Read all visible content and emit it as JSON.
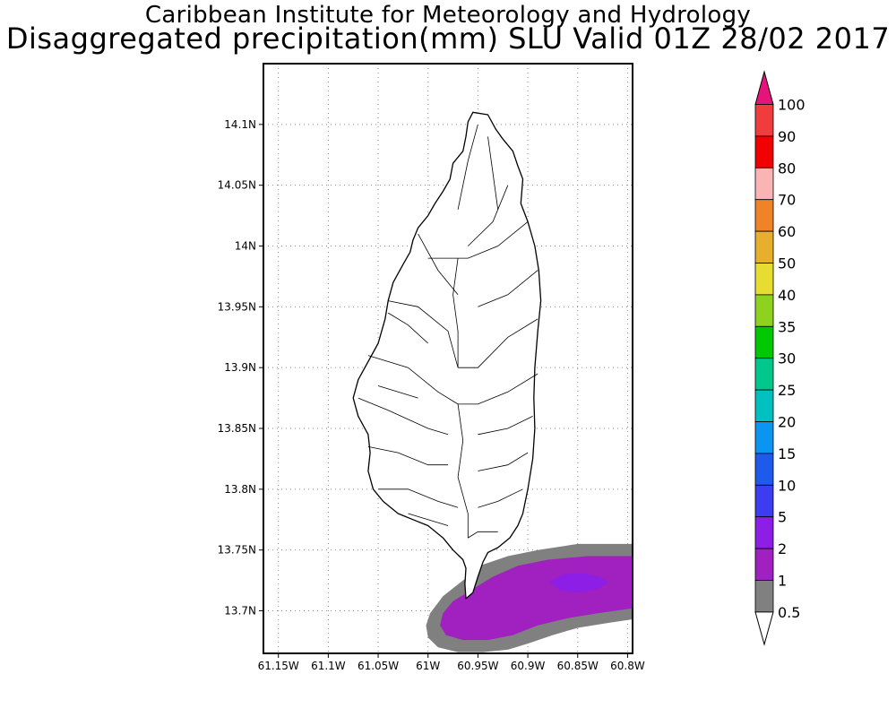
{
  "title": {
    "line1": "Caribbean Institute for Meteorology and Hydrology",
    "line2": "Disaggregated precipitation(mm) SLU Valid 01Z 28/02 2017"
  },
  "map": {
    "lon_range": [
      -61.165,
      -60.795
    ],
    "lat_range": [
      13.665,
      14.15
    ],
    "lon_ticks": [
      {
        "value": -61.15,
        "label": "61.15W"
      },
      {
        "value": -61.1,
        "label": "61.1W"
      },
      {
        "value": -61.05,
        "label": "61.05W"
      },
      {
        "value": -61.0,
        "label": "61W"
      },
      {
        "value": -60.95,
        "label": "60.95W"
      },
      {
        "value": -60.9,
        "label": "60.9W"
      },
      {
        "value": -60.85,
        "label": "60.85W"
      },
      {
        "value": -60.8,
        "label": "60.8W"
      }
    ],
    "lat_ticks": [
      {
        "value": 13.7,
        "label": "13.7N"
      },
      {
        "value": 13.75,
        "label": "13.75N"
      },
      {
        "value": 13.8,
        "label": "13.8N"
      },
      {
        "value": 13.85,
        "label": "13.85N"
      },
      {
        "value": 13.9,
        "label": "13.9N"
      },
      {
        "value": 13.95,
        "label": "13.95N"
      },
      {
        "value": 14.0,
        "label": "14N"
      },
      {
        "value": 14.05,
        "label": "14.05N"
      },
      {
        "value": 14.1,
        "label": "14.1N"
      }
    ],
    "grid": "dotted",
    "island_outline": [
      [
        -60.955,
        14.11
      ],
      [
        -60.94,
        14.108
      ],
      [
        -60.932,
        14.096
      ],
      [
        -60.925,
        14.088
      ],
      [
        -60.915,
        14.078
      ],
      [
        -60.91,
        14.066
      ],
      [
        -60.905,
        14.055
      ],
      [
        -60.907,
        14.035
      ],
      [
        -60.9,
        14.02
      ],
      [
        -60.893,
        14.0
      ],
      [
        -60.889,
        13.98
      ],
      [
        -60.887,
        13.955
      ],
      [
        -60.89,
        13.93
      ],
      [
        -60.893,
        13.9
      ],
      [
        -60.894,
        13.875
      ],
      [
        -60.893,
        13.85
      ],
      [
        -60.895,
        13.825
      ],
      [
        -60.9,
        13.8
      ],
      [
        -60.905,
        13.78
      ],
      [
        -60.91,
        13.77
      ],
      [
        -60.918,
        13.76
      ],
      [
        -60.93,
        13.752
      ],
      [
        -60.94,
        13.748
      ],
      [
        -60.945,
        13.74
      ],
      [
        -60.95,
        13.728
      ],
      [
        -60.955,
        13.715
      ],
      [
        -60.962,
        13.71
      ],
      [
        -60.963,
        13.722
      ],
      [
        -60.962,
        13.735
      ],
      [
        -60.965,
        13.742
      ],
      [
        -60.975,
        13.75
      ],
      [
        -60.985,
        13.76
      ],
      [
        -61.0,
        13.77
      ],
      [
        -61.015,
        13.775
      ],
      [
        -61.03,
        13.78
      ],
      [
        -61.045,
        13.79
      ],
      [
        -61.055,
        13.8
      ],
      [
        -61.06,
        13.815
      ],
      [
        -61.058,
        13.83
      ],
      [
        -61.06,
        13.845
      ],
      [
        -61.07,
        13.86
      ],
      [
        -61.075,
        13.875
      ],
      [
        -61.07,
        13.89
      ],
      [
        -61.06,
        13.905
      ],
      [
        -61.05,
        13.92
      ],
      [
        -61.043,
        13.94
      ],
      [
        -61.04,
        13.955
      ],
      [
        -61.035,
        13.97
      ],
      [
        -61.025,
        13.985
      ],
      [
        -61.018,
        13.995
      ],
      [
        -61.015,
        14.005
      ],
      [
        -61.01,
        14.015
      ],
      [
        -61.0,
        14.025
      ],
      [
        -60.993,
        14.035
      ],
      [
        -60.985,
        14.045
      ],
      [
        -60.978,
        14.055
      ],
      [
        -60.975,
        14.068
      ],
      [
        -60.965,
        14.078
      ],
      [
        -60.962,
        14.09
      ],
      [
        -60.96,
        14.102
      ]
    ],
    "watersheds": [
      [
        [
          -60.95,
          14.1
        ],
        [
          -60.96,
          14.07
        ],
        [
          -60.97,
          14.03
        ]
      ],
      [
        [
          -60.94,
          14.09
        ],
        [
          -60.935,
          14.06
        ],
        [
          -60.93,
          14.03
        ]
      ],
      [
        [
          -60.92,
          14.05
        ],
        [
          -60.935,
          14.02
        ],
        [
          -60.96,
          14.0
        ]
      ],
      [
        [
          -60.9,
          14.02
        ],
        [
          -60.93,
          14.0
        ],
        [
          -60.96,
          13.99
        ],
        [
          -61.0,
          13.99
        ]
      ],
      [
        [
          -61.01,
          14.01
        ],
        [
          -60.99,
          13.98
        ],
        [
          -60.97,
          13.96
        ]
      ],
      [
        [
          -60.89,
          13.98
        ],
        [
          -60.92,
          13.96
        ],
        [
          -60.95,
          13.95
        ]
      ],
      [
        [
          -61.04,
          13.955
        ],
        [
          -61.01,
          13.95
        ],
        [
          -60.98,
          13.93
        ],
        [
          -60.97,
          13.9
        ]
      ],
      [
        [
          -60.89,
          13.94
        ],
        [
          -60.92,
          13.925
        ],
        [
          -60.95,
          13.9
        ],
        [
          -60.97,
          13.9
        ]
      ],
      [
        [
          -61.06,
          13.91
        ],
        [
          -61.02,
          13.9
        ],
        [
          -60.99,
          13.88
        ],
        [
          -60.97,
          13.87
        ]
      ],
      [
        [
          -60.89,
          13.895
        ],
        [
          -60.92,
          13.88
        ],
        [
          -60.95,
          13.87
        ],
        [
          -60.97,
          13.87
        ]
      ],
      [
        [
          -61.07,
          13.875
        ],
        [
          -61.04,
          13.865
        ],
        [
          -61.0,
          13.85
        ],
        [
          -60.98,
          13.845
        ]
      ],
      [
        [
          -60.895,
          13.86
        ],
        [
          -60.92,
          13.85
        ],
        [
          -60.95,
          13.845
        ]
      ],
      [
        [
          -61.06,
          13.835
        ],
        [
          -61.03,
          13.83
        ],
        [
          -61.0,
          13.82
        ],
        [
          -60.98,
          13.82
        ]
      ],
      [
        [
          -60.9,
          13.83
        ],
        [
          -60.92,
          13.82
        ],
        [
          -60.95,
          13.815
        ]
      ],
      [
        [
          -61.05,
          13.8
        ],
        [
          -61.02,
          13.8
        ],
        [
          -60.99,
          13.79
        ],
        [
          -60.97,
          13.785
        ]
      ],
      [
        [
          -60.905,
          13.8
        ],
        [
          -60.93,
          13.79
        ],
        [
          -60.95,
          13.785
        ]
      ],
      [
        [
          -61.02,
          13.78
        ],
        [
          -61.0,
          13.775
        ],
        [
          -60.98,
          13.77
        ]
      ],
      [
        [
          -60.93,
          13.765
        ],
        [
          -60.95,
          13.765
        ],
        [
          -60.96,
          13.76
        ]
      ],
      [
        [
          -60.97,
          13.87
        ],
        [
          -60.965,
          13.84
        ],
        [
          -60.97,
          13.81
        ],
        [
          -60.96,
          13.78
        ],
        [
          -60.96,
          13.76
        ]
      ],
      [
        [
          -60.97,
          13.99
        ],
        [
          -60.975,
          13.96
        ],
        [
          -60.97,
          13.93
        ],
        [
          -60.97,
          13.9
        ]
      ],
      [
        [
          -61.04,
          13.945
        ],
        [
          -61.02,
          13.935
        ],
        [
          -61.0,
          13.92
        ]
      ],
      [
        [
          -61.05,
          13.885
        ],
        [
          -61.03,
          13.88
        ],
        [
          -61.01,
          13.875
        ]
      ]
    ],
    "precip_areas": [
      {
        "class": "0.5-1",
        "color": "#808080",
        "polygon": [
          [
            -60.795,
            13.755
          ],
          [
            -60.85,
            13.755
          ],
          [
            -60.89,
            13.75
          ],
          [
            -60.92,
            13.745
          ],
          [
            -60.945,
            13.738
          ],
          [
            -60.965,
            13.725
          ],
          [
            -60.985,
            13.712
          ],
          [
            -60.998,
            13.698
          ],
          [
            -61.002,
            13.688
          ],
          [
            -61.0,
            13.678
          ],
          [
            -60.99,
            13.67
          ],
          [
            -60.97,
            13.666
          ],
          [
            -60.945,
            13.666
          ],
          [
            -60.92,
            13.668
          ],
          [
            -60.9,
            13.673
          ],
          [
            -60.875,
            13.68
          ],
          [
            -60.85,
            13.686
          ],
          [
            -60.82,
            13.69
          ],
          [
            -60.795,
            13.693
          ]
        ]
      },
      {
        "class": "1-2",
        "color": "#a020c0",
        "polygon": [
          [
            -60.795,
            13.745
          ],
          [
            -60.84,
            13.745
          ],
          [
            -60.88,
            13.742
          ],
          [
            -60.91,
            13.737
          ],
          [
            -60.935,
            13.728
          ],
          [
            -60.955,
            13.718
          ],
          [
            -60.975,
            13.708
          ],
          [
            -60.985,
            13.698
          ],
          [
            -60.988,
            13.688
          ],
          [
            -60.982,
            13.68
          ],
          [
            -60.965,
            13.676
          ],
          [
            -60.94,
            13.676
          ],
          [
            -60.915,
            13.68
          ],
          [
            -60.89,
            13.688
          ],
          [
            -60.86,
            13.694
          ],
          [
            -60.83,
            13.698
          ],
          [
            -60.795,
            13.702
          ]
        ]
      },
      {
        "class": "2-5",
        "color": "#8c1ee6",
        "polygon": [
          [
            -60.878,
            13.724
          ],
          [
            -60.865,
            13.73
          ],
          [
            -60.845,
            13.731
          ],
          [
            -60.828,
            13.728
          ],
          [
            -60.82,
            13.723
          ],
          [
            -60.83,
            13.718
          ],
          [
            -60.85,
            13.715
          ],
          [
            -60.868,
            13.717
          ]
        ]
      }
    ]
  },
  "colorbar": {
    "levels": [
      {
        "label": "0.5",
        "color": "#ffffff"
      },
      {
        "label": "1",
        "color": "#808080"
      },
      {
        "label": "2",
        "color": "#a020c0"
      },
      {
        "label": "5",
        "color": "#8c1ee6"
      },
      {
        "label": "10",
        "color": "#3c3cf0"
      },
      {
        "label": "15",
        "color": "#1e5aeb"
      },
      {
        "label": "20",
        "color": "#0a96f0"
      },
      {
        "label": "25",
        "color": "#00c0c0"
      },
      {
        "label": "30",
        "color": "#00c88c"
      },
      {
        "label": "35",
        "color": "#00c800"
      },
      {
        "label": "40",
        "color": "#8cd21e"
      },
      {
        "label": "50",
        "color": "#e6dc32"
      },
      {
        "label": "60",
        "color": "#e6af2d"
      },
      {
        "label": "70",
        "color": "#f08228"
      },
      {
        "label": "80",
        "color": "#fab4b4"
      },
      {
        "label": "90",
        "color": "#f00000"
      },
      {
        "label": "100",
        "color": "#f03c3c"
      }
    ],
    "top_color": "#e6147a",
    "bottom_color": "#ffffff"
  }
}
